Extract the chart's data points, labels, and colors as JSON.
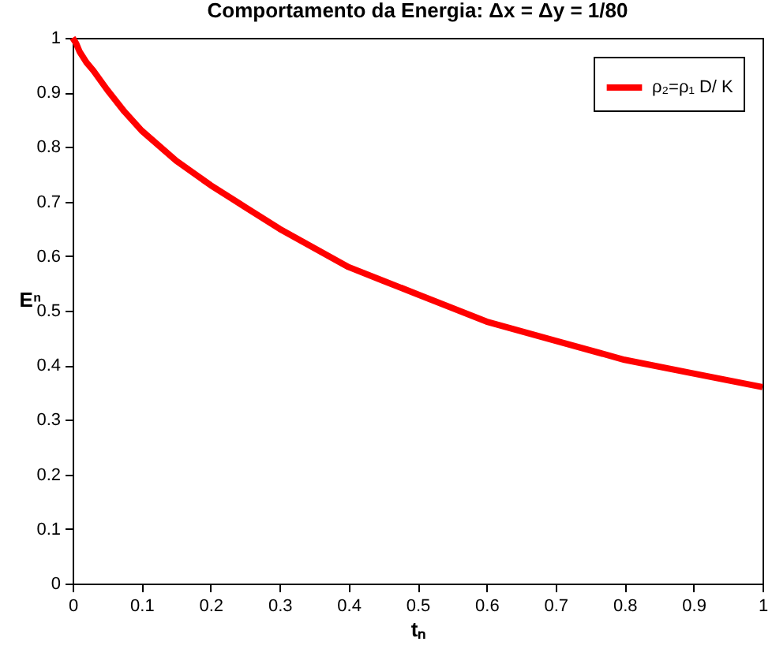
{
  "chart_data": {
    "type": "line",
    "title": "Comportamento da Energia:  Δx = Δy = 1/80",
    "xlabel": "tₙ",
    "ylabel": "Eⁿ",
    "xlim": [
      0,
      1
    ],
    "ylim": [
      0,
      1
    ],
    "xticks": [
      0,
      0.1,
      0.2,
      0.3,
      0.4,
      0.5,
      0.6,
      0.7,
      0.8,
      0.9,
      1
    ],
    "yticks": [
      0,
      0.1,
      0.2,
      0.3,
      0.4,
      0.5,
      0.6,
      0.7,
      0.8,
      0.9,
      1
    ],
    "grid": false,
    "legend": "top right",
    "marker": "none",
    "line_style": "solid",
    "series": [
      {
        "name": "ρ₂=ρ₁ D/ K",
        "color": "#ff0000",
        "x": [
          0,
          0.005,
          0.01,
          0.02,
          0.03,
          0.05,
          0.075,
          0.1,
          0.15,
          0.2,
          0.25,
          0.3,
          0.35,
          0.4,
          0.45,
          0.5,
          0.6,
          0.7,
          0.8,
          0.9,
          1
        ],
        "values": [
          1,
          0.99,
          0.975,
          0.955,
          0.94,
          0.905,
          0.865,
          0.83,
          0.775,
          0.73,
          0.69,
          0.65,
          0.615,
          0.58,
          0.555,
          0.53,
          0.48,
          0.445,
          0.41,
          0.385,
          0.36
        ]
      }
    ]
  }
}
